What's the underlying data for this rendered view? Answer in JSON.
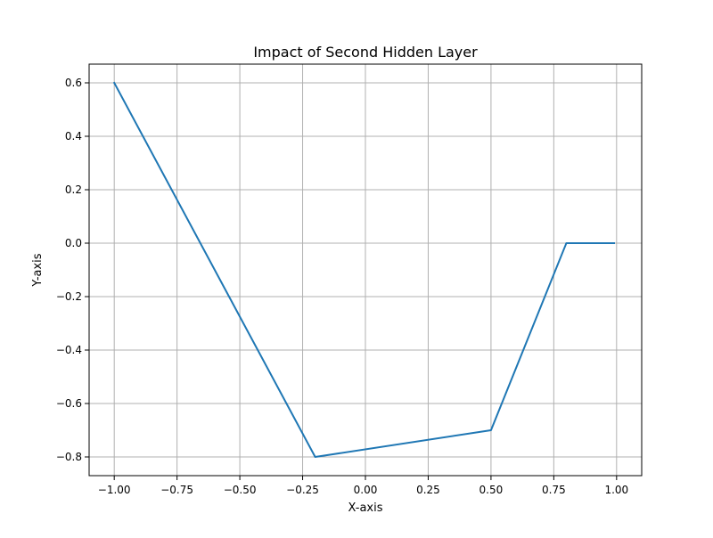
{
  "chart_data": {
    "type": "line",
    "title": "Impact of Second Hidden Layer",
    "xlabel": "X-axis",
    "ylabel": "Y-axis",
    "xlim": [
      -1.1,
      1.1
    ],
    "ylim": [
      -0.87,
      0.67
    ],
    "grid": true,
    "x_ticks": [
      -1.0,
      -0.75,
      -0.5,
      -0.25,
      0.0,
      0.25,
      0.5,
      0.75,
      1.0
    ],
    "x_tick_labels": [
      "−1.00",
      "−0.75",
      "−0.50",
      "−0.25",
      "0.00",
      "0.25",
      "0.50",
      "0.75",
      "1.00"
    ],
    "y_ticks": [
      0.6,
      0.4,
      0.2,
      0.0,
      -0.2,
      -0.4,
      -0.6,
      -0.8
    ],
    "y_tick_labels": [
      "0.6",
      "0.4",
      "0.2",
      "0.0",
      "−0.2",
      "−0.4",
      "−0.6",
      "−0.8"
    ],
    "series": [
      {
        "color": "#1f77b4",
        "x": [
          -1.0,
          -0.2,
          0.5,
          0.8,
          0.99
        ],
        "y": [
          0.6,
          -0.8,
          -0.7,
          0.0,
          0.0
        ]
      }
    ],
    "colors": {
      "grid": "#b0b0b0",
      "axes": "#000000"
    }
  }
}
